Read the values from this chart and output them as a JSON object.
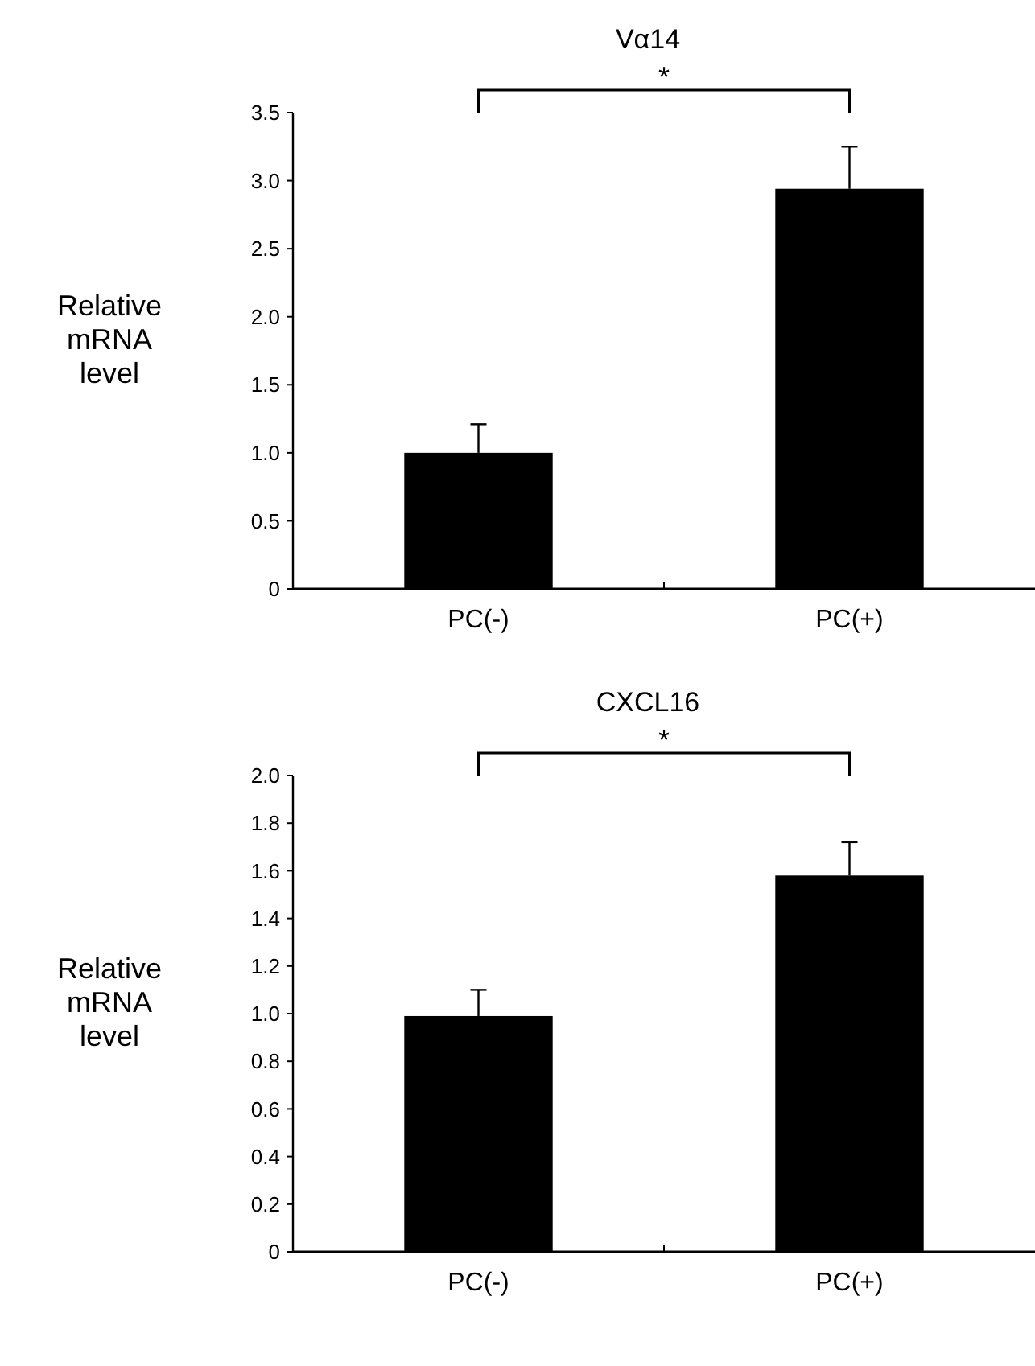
{
  "chart_data": [
    {
      "type": "bar",
      "title": "Vα14",
      "ylabel": "Relative mRNA level",
      "categories": [
        "PC(-)",
        "PC(+)"
      ],
      "values": [
        1.0,
        2.94
      ],
      "errors": [
        0.21,
        0.31
      ],
      "color": "#000000",
      "ylim": [
        0,
        3.5
      ],
      "yticks": [
        0,
        0.5,
        {
          "value": 1,
          "label": "1.0"
        },
        1.5,
        {
          "value": 2,
          "label": "2.0"
        },
        2.5,
        {
          "value": 3,
          "label": "3.0"
        },
        3.5
      ],
      "annotations": [
        "*"
      ]
    },
    {
      "type": "bar",
      "title": "CXCL16",
      "ylabel": "Relative mRNA level",
      "categories": [
        "PC(-)",
        "PC(+)"
      ],
      "values": [
        0.99,
        1.58
      ],
      "errors": [
        0.11,
        0.14
      ],
      "color": "#000000",
      "ylim": [
        0,
        2.0
      ],
      "yticks": [
        0,
        0.2,
        0.4,
        0.6,
        0.8,
        {
          "value": 1,
          "label": "1.0"
        },
        1.2,
        1.4,
        1.6,
        1.8,
        {
          "value": 2,
          "label": "2.0"
        }
      ],
      "annotations": [
        "*"
      ]
    }
  ]
}
